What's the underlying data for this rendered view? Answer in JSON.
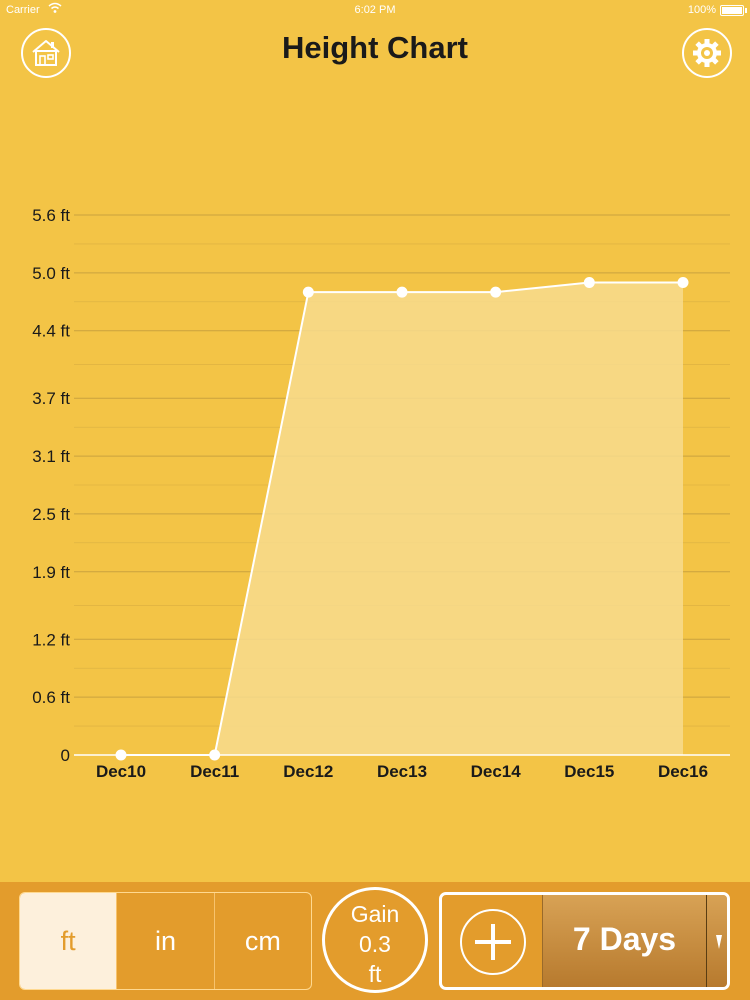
{
  "status_bar": {
    "carrier": "Carrier",
    "time": "6:02 PM",
    "battery": "100%"
  },
  "header": {
    "title": "Height Chart",
    "home_icon": "house-icon",
    "settings_icon": "gear-icon"
  },
  "chart_data": {
    "type": "area",
    "x": [
      "Dec10",
      "Dec11",
      "Dec12",
      "Dec13",
      "Dec14",
      "Dec15",
      "Dec16"
    ],
    "values": [
      0,
      0,
      4.8,
      4.8,
      4.8,
      4.9,
      4.9
    ],
    "y_ticks": [
      0,
      0.6,
      1.2,
      1.9,
      2.5,
      3.1,
      3.7,
      4.4,
      5.0,
      5.6
    ],
    "y_tick_labels": [
      "0",
      "0.6 ft",
      "1.2 ft",
      "1.9 ft",
      "2.5 ft",
      "3.1 ft",
      "3.7 ft",
      "4.4 ft",
      "5.0 ft",
      "5.6 ft"
    ],
    "ylim": [
      0,
      5.6
    ],
    "grid": true,
    "colors": {
      "line": "#ffffff",
      "fill": "#f7dc8e",
      "grid": "#c9a23f",
      "text": "#1a1a1a"
    }
  },
  "bottom_bar": {
    "units": [
      {
        "label": "ft",
        "selected": true
      },
      {
        "label": "in",
        "selected": false
      },
      {
        "label": "cm",
        "selected": false
      }
    ],
    "gain": {
      "label": "Gain",
      "value": "0.3",
      "unit": "ft"
    },
    "add_icon": "plus-icon",
    "range_label": "7 Days",
    "dropdown_icon": "chevron-down-icon"
  },
  "colors": {
    "background": "#f3c446",
    "bottom_bar": "#e39c2c",
    "accent": "#ffffff"
  }
}
